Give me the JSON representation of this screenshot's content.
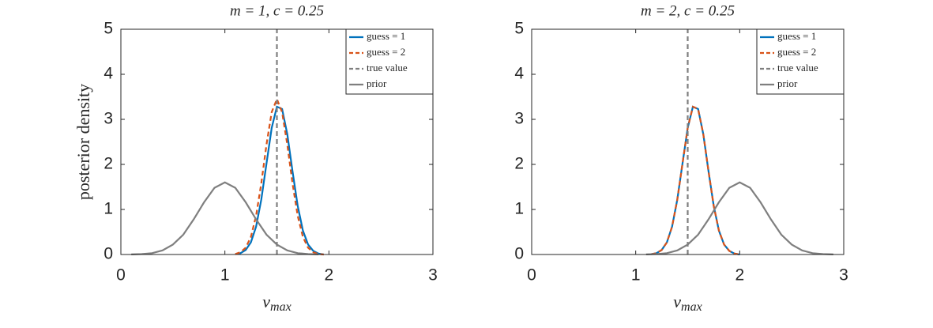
{
  "chart_data": [
    {
      "type": "line",
      "title": "m = 1, c = 0.25",
      "ylabel": "posterior density",
      "xlabel": "v",
      "xlabel_subscript": "max",
      "xlim": [
        0,
        3
      ],
      "xticks": [
        0,
        1,
        2,
        3
      ],
      "ylim": [
        0,
        5
      ],
      "yticks": [
        0,
        1,
        2,
        3,
        4,
        5
      ],
      "legend": "upper right",
      "series": [
        {
          "name": "guess = 1",
          "color": "#0072bd",
          "dashed": false,
          "x": [
            1.1,
            1.15,
            1.2,
            1.25,
            1.3,
            1.35,
            1.4,
            1.45,
            1.5,
            1.55,
            1.6,
            1.65,
            1.7,
            1.75,
            1.8,
            1.85,
            1.9,
            1.95
          ],
          "values": [
            0.007,
            0.03,
            0.1,
            0.27,
            0.62,
            1.22,
            2.02,
            2.81,
            3.28,
            3.23,
            2.67,
            1.85,
            1.08,
            0.53,
            0.22,
            0.08,
            0.02,
            0
          ]
        },
        {
          "name": "guess = 2",
          "color": "#d95319",
          "dashed": true,
          "x": [
            1.1,
            1.15,
            1.2,
            1.25,
            1.3,
            1.35,
            1.4,
            1.45,
            1.5,
            1.55,
            1.6,
            1.65,
            1.7,
            1.75,
            1.8,
            1.85,
            1.9,
            1.95
          ],
          "values": [
            0.01,
            0.05,
            0.15,
            0.39,
            0.86,
            1.58,
            2.44,
            3.16,
            3.45,
            3.16,
            2.44,
            1.58,
            0.86,
            0.39,
            0.15,
            0.05,
            0.01,
            0
          ]
        },
        {
          "name": "true value",
          "color": "#7f7f7f",
          "dashed": true,
          "x": [
            1.5,
            1.5
          ],
          "values": [
            0,
            5
          ]
        },
        {
          "name": "prior",
          "color": "#7f7f7f",
          "dashed": false,
          "x": [
            0.1,
            0.2,
            0.3,
            0.4,
            0.5,
            0.6,
            0.7,
            0.8,
            0.9,
            1.0,
            1.1,
            1.2,
            1.3,
            1.4,
            1.5,
            1.6,
            1.7,
            1.8,
            1.9
          ],
          "values": [
            0.002,
            0.01,
            0.03,
            0.09,
            0.22,
            0.44,
            0.78,
            1.16,
            1.48,
            1.6,
            1.48,
            1.16,
            0.78,
            0.44,
            0.22,
            0.09,
            0.03,
            0.01,
            0.002
          ]
        }
      ]
    },
    {
      "type": "line",
      "title": "m = 2, c = 0.25",
      "xlabel": "v",
      "xlabel_subscript": "max",
      "xlim": [
        0,
        3
      ],
      "xticks": [
        0,
        1,
        2,
        3
      ],
      "ylim": [
        0,
        5
      ],
      "yticks": [
        0,
        1,
        2,
        3,
        4,
        5
      ],
      "legend": "upper right",
      "series": [
        {
          "name": "guess = 1",
          "color": "#0072bd",
          "dashed": false,
          "x": [
            1.15,
            1.2,
            1.25,
            1.3,
            1.35,
            1.4,
            1.45,
            1.5,
            1.55,
            1.6,
            1.65,
            1.7,
            1.75,
            1.8,
            1.85,
            1.9,
            1.95,
            2.0
          ],
          "values": [
            0.007,
            0.03,
            0.1,
            0.27,
            0.62,
            1.22,
            2.02,
            2.81,
            3.28,
            3.23,
            2.67,
            1.85,
            1.08,
            0.53,
            0.22,
            0.08,
            0.02,
            0
          ]
        },
        {
          "name": "guess = 2",
          "color": "#d95319",
          "dashed": true,
          "x": [
            1.15,
            1.2,
            1.25,
            1.3,
            1.35,
            1.4,
            1.45,
            1.5,
            1.55,
            1.6,
            1.65,
            1.7,
            1.75,
            1.8,
            1.85,
            1.9,
            1.95,
            2.0
          ],
          "values": [
            0.007,
            0.03,
            0.1,
            0.27,
            0.62,
            1.22,
            2.02,
            2.81,
            3.28,
            3.23,
            2.67,
            1.85,
            1.08,
            0.53,
            0.22,
            0.08,
            0.02,
            0
          ]
        },
        {
          "name": "true value",
          "color": "#7f7f7f",
          "dashed": true,
          "x": [
            1.5,
            1.5
          ],
          "values": [
            0,
            5
          ]
        },
        {
          "name": "prior",
          "color": "#7f7f7f",
          "dashed": false,
          "x": [
            1.1,
            1.2,
            1.3,
            1.4,
            1.5,
            1.6,
            1.7,
            1.8,
            1.9,
            2.0,
            2.1,
            2.2,
            2.3,
            2.4,
            2.5,
            2.6,
            2.7,
            2.8,
            2.9
          ],
          "values": [
            0.002,
            0.01,
            0.03,
            0.09,
            0.22,
            0.44,
            0.78,
            1.16,
            1.48,
            1.6,
            1.48,
            1.16,
            0.78,
            0.44,
            0.22,
            0.09,
            0.03,
            0.01,
            0.002
          ]
        }
      ]
    }
  ]
}
